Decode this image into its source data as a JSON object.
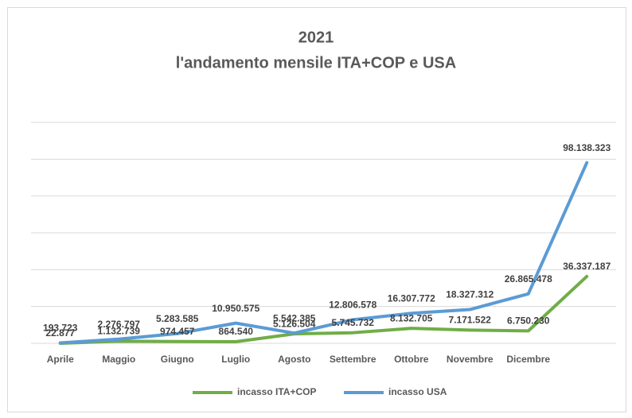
{
  "chart_data": {
    "type": "line",
    "title": "2021",
    "subtitle": "l'andamento mensile ITA+COP e USA",
    "categories": [
      "Aprile",
      "Maggio",
      "Giugno",
      "Luglio",
      "Agosto",
      "Settembre",
      "Ottobre",
      "Novembre",
      "Dicembre",
      null
    ],
    "series": [
      {
        "name": "incasso ITA+COP",
        "color": "#70ad47",
        "values": [
          22877,
          1132739,
          974457,
          864540,
          5126504,
          5745732,
          8132705,
          7171522,
          6750230,
          36337187
        ],
        "value_labels": [
          "22.877",
          "1.132.739",
          "974.457",
          "864.540",
          "5.126.504",
          "5.745.732",
          "8.132.705",
          "7.171.522",
          "6.750.230",
          "36.337.187"
        ]
      },
      {
        "name": "incasso USA",
        "color": "#5b9bd5",
        "values": [
          193723,
          2276797,
          5283585,
          10950575,
          5542385,
          12806578,
          16307772,
          18327312,
          26865478,
          98138323
        ],
        "value_labels": [
          "193.723",
          "2.276.797",
          "5.283.585",
          "10.950.575",
          "5.542.385",
          "12.806.578",
          "16.307.772",
          "18.327.312",
          "26.865.478",
          "98.138.323"
        ]
      }
    ],
    "ylim": [
      0,
      120000000
    ],
    "yticks": [
      0,
      20000000,
      40000000,
      60000000,
      80000000,
      100000000,
      120000000
    ],
    "grid": true,
    "legend": "bottom"
  }
}
